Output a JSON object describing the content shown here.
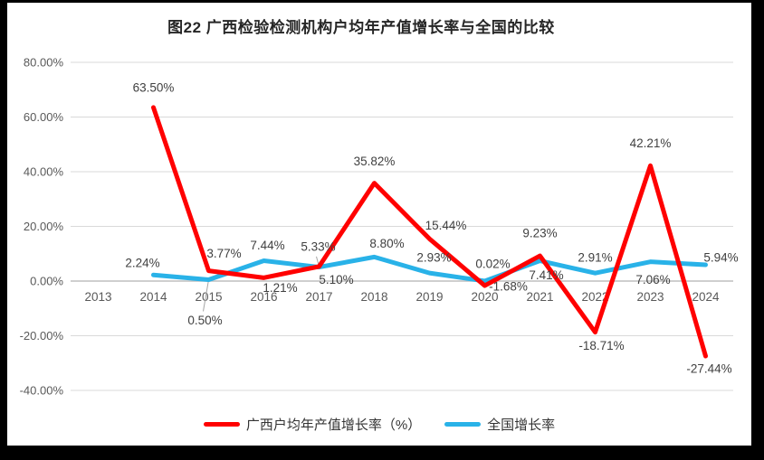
{
  "frame": {
    "background_color": "#000000",
    "page_color": "#FFFFFF"
  },
  "chart_data": {
    "type": "line",
    "title": "图22 广西检验检测机构户均年产值增长率与全国的比较",
    "categories": [
      "2013",
      "2014",
      "2015",
      "2016",
      "2017",
      "2018",
      "2019",
      "2020",
      "2021",
      "2022",
      "2023",
      "2024"
    ],
    "y_axis": {
      "min": -40,
      "max": 80,
      "step": 20,
      "tick_labels": [
        "80.00%",
        "60.00%",
        "40.00%",
        "20.00%",
        "0.00%",
        "-20.00%",
        "-40.00%"
      ]
    },
    "grid": true,
    "legend_position": "bottom",
    "colors": {
      "gridline": "#D9D9D9",
      "axis_line": "#BFBFBF",
      "tick_text": "#595959",
      "data_label_text": "#404040",
      "leader_line": "#A6A6A6"
    },
    "series": [
      {
        "name": "广西户均年产值增长率（%）",
        "color": "#FF0000",
        "values": [
          null,
          63.5,
          3.77,
          1.21,
          5.33,
          35.82,
          15.44,
          -1.68,
          9.23,
          -18.71,
          42.21,
          -27.44
        ],
        "labels": [
          "",
          "63.50%",
          "3.77%",
          "1.21%",
          "5.33%",
          "35.82%",
          "15.44%",
          "-1.68%",
          "9.23%",
          "-18.71%",
          "42.21%",
          "-27.44%"
        ],
        "label_offsets": [
          null,
          [
            0,
            -22
          ],
          [
            17,
            -19
          ],
          [
            18,
            11
          ],
          [
            -1,
            -22
          ],
          [
            0,
            -24
          ],
          [
            18,
            -15
          ],
          [
            26,
            1
          ],
          [
            0,
            -25
          ],
          [
            7,
            15
          ],
          [
            0,
            -25
          ],
          [
            4,
            14
          ]
        ]
      },
      {
        "name": "全国增长率",
        "color": "#29B2E8",
        "values": [
          null,
          2.24,
          0.5,
          7.44,
          5.1,
          8.8,
          2.93,
          0.02,
          7.41,
          2.91,
          7.06,
          5.94
        ],
        "labels": [
          "",
          "2.24%",
          "0.50%",
          "7.44%",
          "5.10%",
          "8.80%",
          "2.93%",
          "0.02%",
          "7.41%",
          "2.91%",
          "7.06%",
          "5.94%"
        ],
        "label_offsets": [
          null,
          [
            -12,
            -13
          ],
          [
            -4,
            45
          ],
          [
            4,
            -17
          ],
          [
            19,
            14
          ],
          [
            14,
            -15
          ],
          [
            5,
            -17
          ],
          [
            9,
            -19
          ],
          [
            7,
            16
          ],
          [
            0,
            -17
          ],
          [
            3,
            20
          ],
          [
            17,
            -8
          ]
        ]
      }
    ],
    "leader_lines": [
      {
        "series": 0,
        "index": 4
      },
      {
        "series": 1,
        "index": 2
      }
    ]
  }
}
